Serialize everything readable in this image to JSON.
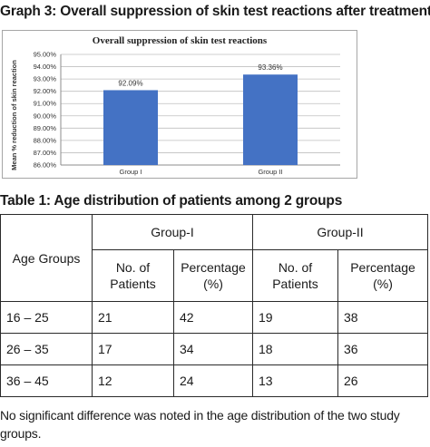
{
  "graph_heading": "Graph 3: Overall suppression of skin test reactions after treatment",
  "chart_data": {
    "type": "bar",
    "title": "Overall suppression of skin test reactions",
    "ylabel": "Mean % reduction of skin reaction",
    "xlabel": "",
    "categories": [
      "Group I",
      "Group II"
    ],
    "values": [
      92.09,
      93.36
    ],
    "data_labels": [
      "92.09%",
      "93.36%"
    ],
    "ylim": [
      86,
      95
    ],
    "yticks": [
      "86.00%",
      "87.00%",
      "88.00%",
      "89.00%",
      "90.00%",
      "91.00%",
      "92.00%",
      "93.00%",
      "94.00%",
      "95.00%"
    ],
    "grid": true,
    "legend": "none",
    "bar_color": "#4472c4"
  },
  "table_heading": "Table 1: Age distribution of patients among 2 groups",
  "table": {
    "col_age": "Age Groups",
    "group1": "Group-I",
    "group2": "Group-II",
    "sub_patients": "No. of Patients",
    "sub_percentage": "Percentage (%)",
    "rows": [
      {
        "age": "16 – 25",
        "g1_n": "21",
        "g1_p": "42",
        "g2_n": "19",
        "g2_p": "38"
      },
      {
        "age": "26 – 35",
        "g1_n": "17",
        "g1_p": "34",
        "g2_n": "18",
        "g2_p": "36"
      },
      {
        "age": "36 – 45",
        "g1_n": "12",
        "g1_p": "24",
        "g2_n": "13",
        "g2_p": "26"
      }
    ]
  },
  "footnote": "No significant difference was noted in the age distribution of the two study groups."
}
